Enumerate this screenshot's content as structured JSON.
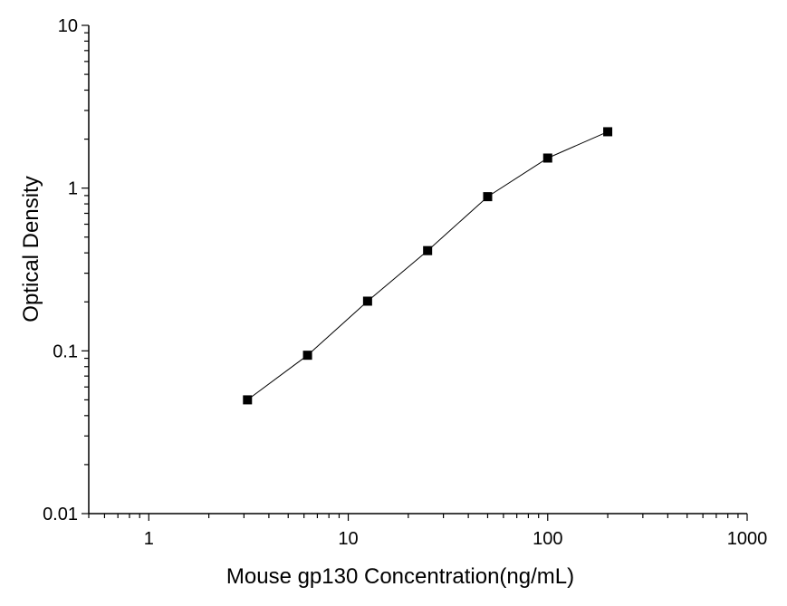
{
  "chart_data": {
    "type": "line",
    "xlabel": "Mouse gp130 Concentration(ng/mL)",
    "ylabel": "Optical  Density",
    "xscale": "log",
    "yscale": "log",
    "xlim": [
      0.5,
      1000
    ],
    "ylim": [
      0.01,
      10
    ],
    "x_ticks": [
      1,
      10,
      100,
      1000
    ],
    "x_tick_labels": [
      "1",
      "10",
      "100",
      "1000"
    ],
    "y_ticks": [
      0.01,
      0.1,
      1,
      10
    ],
    "y_tick_labels": [
      "0.01",
      "0.1",
      "1",
      "10"
    ],
    "grid": false,
    "legend": "none",
    "marker": "square",
    "series": [
      {
        "x": [
          3.125,
          6.25,
          12.5,
          25,
          50,
          100,
          200
        ],
        "y": [
          0.05,
          0.094,
          0.202,
          0.413,
          0.886,
          1.53,
          2.22
        ]
      }
    ],
    "colors": {
      "line": "#000000",
      "marker": "#000000",
      "axis": "#000000"
    }
  }
}
